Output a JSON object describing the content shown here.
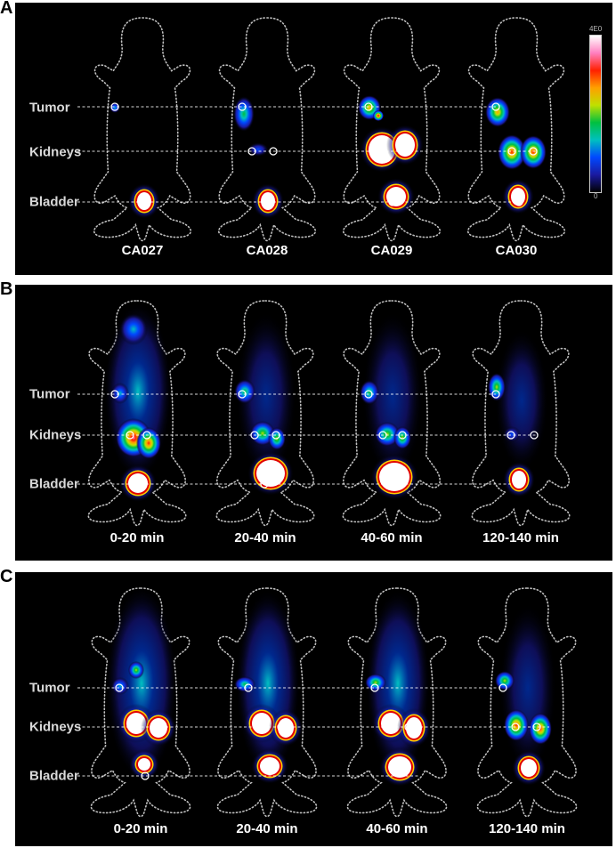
{
  "panels": [
    {
      "letter": "A",
      "rows": [
        "Tumor",
        "Kidneys",
        "Bladder"
      ],
      "columns": [
        "CA027",
        "CA028",
        "CA029",
        "CA030"
      ],
      "colorbar": {
        "max": "4E0",
        "min": "0"
      }
    },
    {
      "letter": "B",
      "rows": [
        "Tumor",
        "Kidneys",
        "Bladder"
      ],
      "columns": [
        "0-20 min",
        "20-40 min",
        "40-60 min",
        "120-140 min"
      ]
    },
    {
      "letter": "C",
      "rows": [
        "Tumor",
        "Kidneys",
        "Bladder"
      ],
      "columns": [
        "0-20 min",
        "20-40 min",
        "40-60 min",
        "120-140 min"
      ]
    }
  ],
  "colors": {
    "background": "#000000",
    "outline": "#bfbfbf",
    "guide_line": "#ffffff",
    "colormap": [
      "#000000",
      "#1a1aa0",
      "#0048ff",
      "#00c0c0",
      "#00c040",
      "#c0e000",
      "#ffa000",
      "#ff2000",
      "#ff80c0",
      "#ffffff"
    ]
  }
}
